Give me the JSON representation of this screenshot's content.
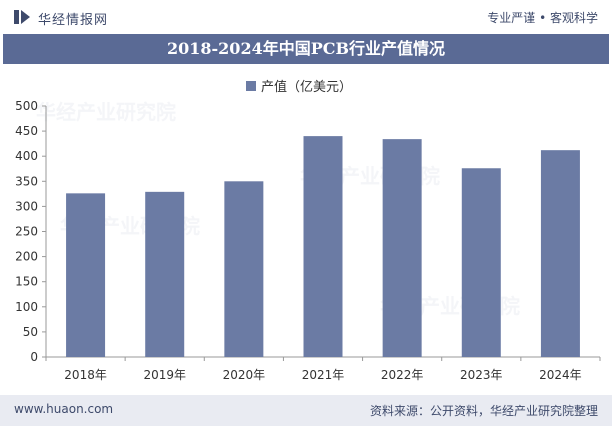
{
  "header": {
    "brand": "华经情报网",
    "slogan": "专业严谨 • 客观科学"
  },
  "footer": {
    "url": "www.huaon.com",
    "source": "资料来源：公开资料，华经产业研究院整理"
  },
  "watermark": {
    "text": "华经产业研究院",
    "url": "www.huaon.com"
  },
  "colors": {
    "bar": "#6b7ba4",
    "title_bg": "#5a6a95"
  },
  "chart_data": {
    "type": "bar",
    "title": "2018-2024年中国PCB行业产值情况",
    "categories": [
      "2018年",
      "2019年",
      "2020年",
      "2021年",
      "2022年",
      "2023年",
      "2024年"
    ],
    "series": [
      {
        "name": "产值（亿美元）",
        "values": [
          326,
          329,
          350,
          440,
          434,
          376,
          412
        ]
      }
    ],
    "yticks": [
      "0",
      "50",
      "100",
      "150",
      "200",
      "250",
      "300",
      "350",
      "400",
      "450",
      "500"
    ],
    "ylim": [
      0,
      500
    ],
    "xlabel": "",
    "ylabel": "",
    "grid": false,
    "legend": "top-center"
  }
}
